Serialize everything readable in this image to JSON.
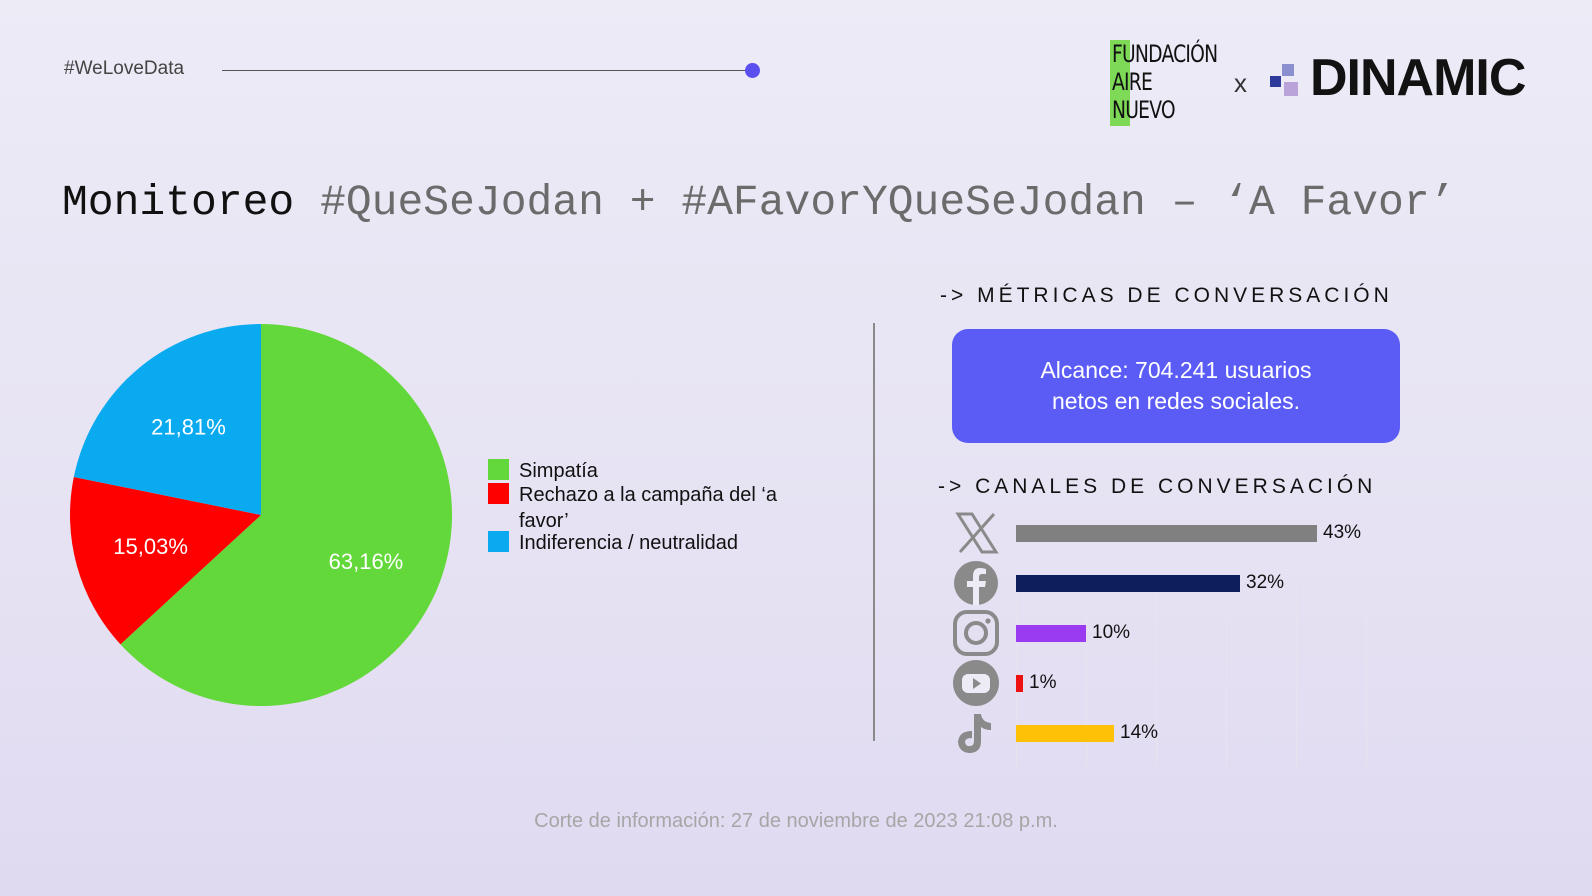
{
  "header": {
    "hashtag": "#WeLoveData",
    "logo_fan_lines": [
      "FUNDACIÓN",
      "AIRE",
      "NUEVO"
    ],
    "logo_separator": "x",
    "logo_dinamic": "DINAMIC"
  },
  "title": {
    "part1": "Monitoreo",
    "part2": "#QueSeJodan + #AFavorYQueSeJodan – ‘A Favor’"
  },
  "colors": {
    "simpatia": "#63d83a",
    "rechazo": "#ff0000",
    "indiferencia": "#0aaaf0",
    "accent": "#5b5cf6"
  },
  "metrics": {
    "section_title": "-> MÉTRICAS DE CONVERSACIÓN",
    "alcance": "Alcance: 704.241 usuarios netos en redes sociales."
  },
  "channels_title": "-> CANALES DE CONVERSACIÓN",
  "footer": "Corte de información: 27 de noviembre de 2023  21:08 p.m.",
  "chart_data": [
    {
      "type": "pie",
      "title": "",
      "slices": [
        {
          "label": "Simpatía",
          "value": 63.16,
          "display": "63,16%",
          "color": "#63d83a"
        },
        {
          "label": "Rechazo a la campaña del ‘a favor’",
          "value": 15.03,
          "display": "15,03%",
          "color": "#ff0000"
        },
        {
          "label": "Indiferencia / neutralidad",
          "value": 21.81,
          "display": "21,81%",
          "color": "#0aaaf0"
        }
      ],
      "legend": [
        "Simpatía",
        "Rechazo a la campaña del ‘a favor’",
        "Indiferencia / neutralidad"
      ],
      "legend_position": "right"
    },
    {
      "type": "bar",
      "orientation": "horizontal",
      "categories": [
        "x-icon",
        "facebook-icon",
        "instagram-icon",
        "youtube-icon",
        "tiktok-icon"
      ],
      "values": [
        43,
        32,
        10,
        1,
        14
      ],
      "value_labels": [
        "43%",
        "32%",
        "10%",
        "1%",
        "14%"
      ],
      "colors": [
        "#808080",
        "#0c1e5b",
        "#9a3bf2",
        "#ee1111",
        "#ffc107"
      ],
      "xlim": [
        0,
        50
      ],
      "grid": true
    }
  ]
}
